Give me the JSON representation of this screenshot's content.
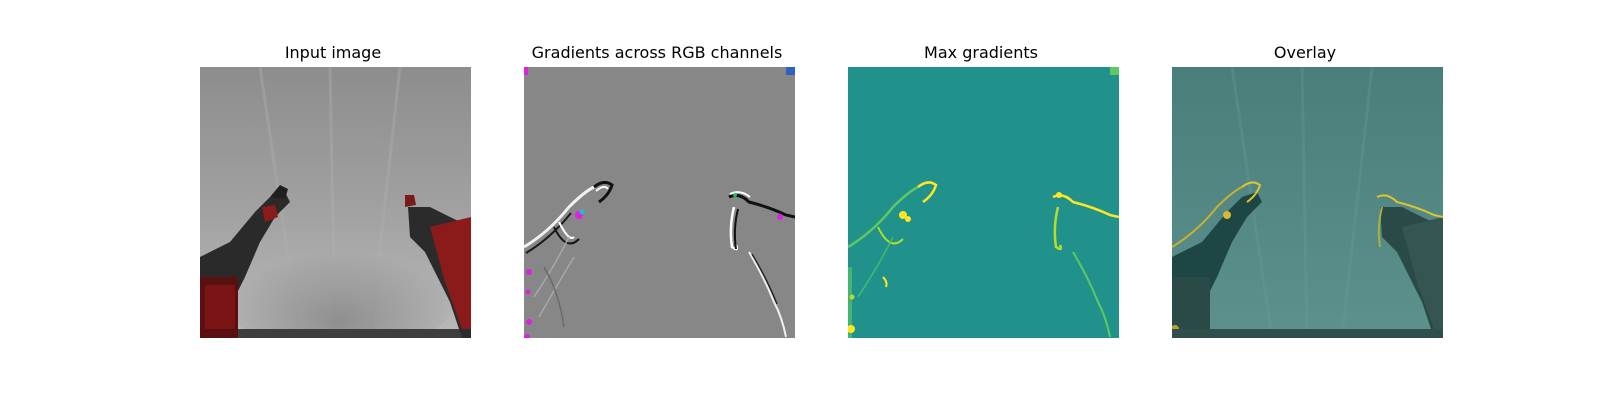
{
  "panels": [
    {
      "title": "Input image"
    },
    {
      "title": "Gradients across RGB channels"
    },
    {
      "title": "Max gradients"
    },
    {
      "title": "Overlay"
    }
  ],
  "colors": {
    "background_white": "#ffffff",
    "cloth_gray": "#9a9a9a",
    "gradient_gray": "#878787",
    "viridis_teal": "#21918c",
    "viridis_yellow": "#fde725",
    "viridis_green": "#5ec962",
    "overlay_teal": "#4e827e",
    "robot_red": "#8b1a1a",
    "robot_dark": "#2a2a2a",
    "magenta": "#e020e0"
  }
}
